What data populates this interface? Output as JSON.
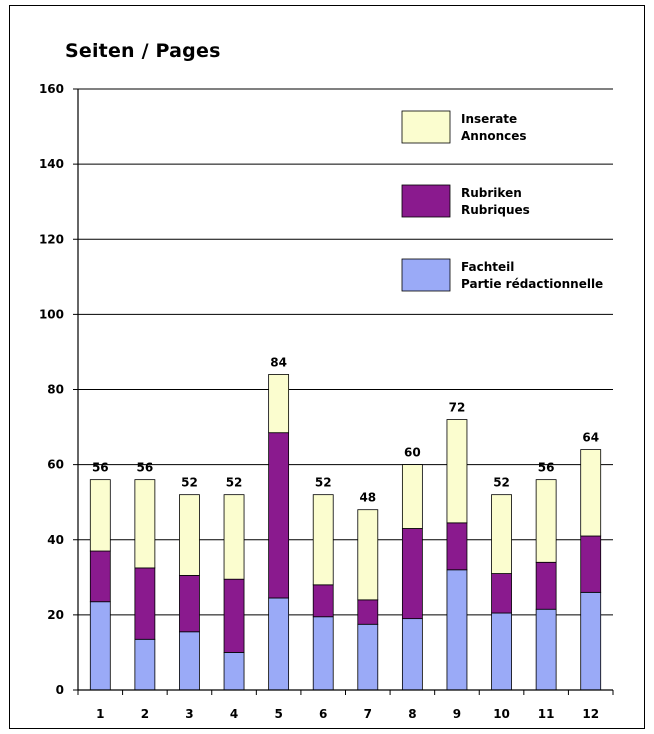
{
  "chart_data": {
    "type": "bar",
    "stacked": true,
    "title": "Seiten / Pages",
    "categories": [
      "1",
      "2",
      "3",
      "4",
      "5",
      "6",
      "7",
      "8",
      "9",
      "10",
      "11",
      "12"
    ],
    "series": [
      {
        "name": "Fachteil / Partie rédactionnelle",
        "label_lines": [
          "Fachteil",
          "Partie rédactionnelle"
        ],
        "color": "#9aaaf7",
        "values": [
          23.5,
          13.5,
          15.5,
          10,
          24.5,
          19.5,
          17.5,
          19,
          32,
          20.5,
          21.5,
          26
        ]
      },
      {
        "name": "Rubriken / Rubriques",
        "label_lines": [
          "Rubriken",
          "Rubriques"
        ],
        "color": "#8a1a8e",
        "values": [
          13.5,
          19,
          15,
          19.5,
          44,
          8.5,
          6.5,
          24,
          12.5,
          10.5,
          12.5,
          15
        ]
      },
      {
        "name": "Inserate / Annonces",
        "label_lines": [
          "Inserate",
          "Annonces"
        ],
        "color": "#fbfdcf",
        "values": [
          19,
          23.5,
          21.5,
          22.5,
          15.5,
          24,
          24,
          17,
          27.5,
          21,
          22,
          23
        ]
      }
    ],
    "totals": [
      56,
      56,
      52,
      52,
      84,
      52,
      48,
      60,
      72,
      52,
      56,
      64
    ],
    "ylim": [
      0,
      160
    ],
    "yticks": [
      0,
      20,
      40,
      60,
      80,
      100,
      120,
      140,
      160
    ],
    "grid": true,
    "legend_position": "top-right"
  }
}
